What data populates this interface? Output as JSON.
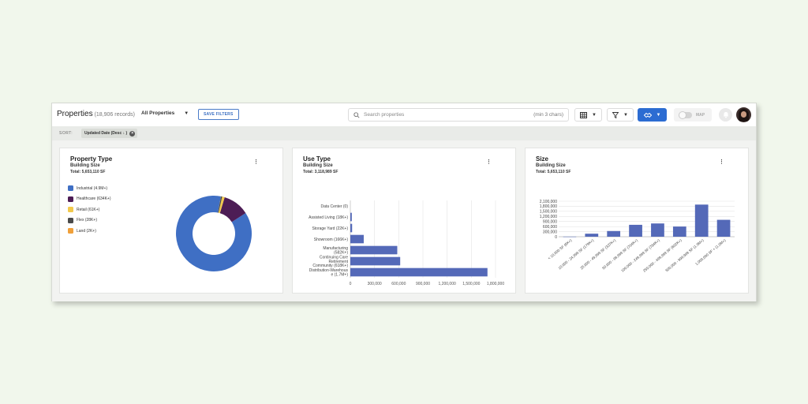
{
  "header": {
    "title": "Properties",
    "record_count": "(18,906 records)",
    "view_selector": "All Properties",
    "save_filters": "SAVE FILTERS",
    "search_placeholder": "Search properties",
    "search_hint": "(min 3 chars)",
    "map_label": "MAP"
  },
  "sort": {
    "label": "SORT:",
    "chip": "Updated Date (Desc ↓ )"
  },
  "cards": {
    "property_type": {
      "title": "Property Type",
      "subtitle": "Building Size",
      "total": "Total: 5,653,110 SF",
      "legend": [
        {
          "label": "Industrial (4.9M+)",
          "color": "#3f6fc4"
        },
        {
          "label": "Healthcare (634K+)",
          "color": "#4d1d55"
        },
        {
          "label": "Retail (61K+)",
          "color": "#f2c94c"
        },
        {
          "label": "Flex (28K+)",
          "color": "#4a4a4a"
        },
        {
          "label": "Land (2K+)",
          "color": "#f0a03a"
        }
      ]
    },
    "use_type": {
      "title": "Use Type",
      "subtitle": "Building Size",
      "total": "Total: 3,118,989 SF"
    },
    "size": {
      "title": "Size",
      "subtitle": "Building Size",
      "total": "Total: 5,653,110 SF"
    }
  },
  "chart_data": [
    {
      "type": "pie",
      "categories": [
        "Industrial",
        "Healthcare",
        "Retail",
        "Flex",
        "Land"
      ],
      "values": [
        4900000,
        634000,
        61000,
        28000,
        2000
      ],
      "colors": [
        "#3f6fc4",
        "#4d1d55",
        "#f2c94c",
        "#4a4a4a",
        "#f0a03a"
      ]
    },
    {
      "type": "bar",
      "orientation": "horizontal",
      "categories": [
        [
          "Data Center (0)"
        ],
        [
          "Assisted Living (18K+)"
        ],
        [
          "Storage Yard (22K+)"
        ],
        [
          "Showroom (166K+)"
        ],
        [
          "Manufacturing",
          "(582K+)"
        ],
        [
          "Continuing Care",
          "Retirement",
          "Community (618K+)"
        ],
        [
          "Distribution-Warehous",
          "e (1.7M+)"
        ]
      ],
      "values": [
        0,
        18000,
        22000,
        166000,
        582000,
        618000,
        1700000
      ],
      "xlim": [
        0,
        1800000
      ],
      "xticks": [
        "0",
        "300,000",
        "600,000",
        "900,000",
        "1,200,000",
        "1,500,000",
        "1,800,000"
      ],
      "color": "#5469b8"
    },
    {
      "type": "bar",
      "categories": [
        "< 10,000 SF (6K+)",
        "10,000 - 24,999 SF (179K+)",
        "25,000 - 49,999 SF (337K+)",
        "50,000 - 99,999 SF (704K+)",
        "100,000 - 249,999 SF (784K+)",
        "250,000 - 499,999 SF (602K+)",
        "500,000 - 999,999 SF (1.9M+)",
        "1,000,000 SF + (1.0M+)"
      ],
      "values": [
        6000,
        179000,
        337000,
        704000,
        784000,
        602000,
        1900000,
        1000000
      ],
      "ylim": [
        0,
        2100000
      ],
      "yticks": [
        "0",
        "300,000",
        "600,000",
        "900,000",
        "1,200,000",
        "1,500,000",
        "1,800,000",
        "2,100,000"
      ],
      "color": "#5469b8"
    }
  ]
}
